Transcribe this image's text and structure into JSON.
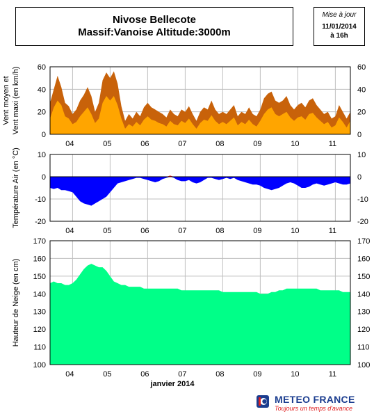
{
  "header": {
    "station": "Nivose Bellecote",
    "massif_line": "Massif:Vanoise Altitude:3000m",
    "update_label": "Mise à jour",
    "update_date": "11/01/2014",
    "update_time": "à 16h"
  },
  "footer": {
    "brand": "METEO FRANCE",
    "slogan": "Toujours un temps d'avance"
  },
  "colors": {
    "wind_mean": "#ffa500",
    "wind_max": "#c8620a",
    "temp_negative": "#0000ff",
    "temp_positive": "#ff0000",
    "snow": "#00ff88"
  },
  "chart_data": [
    {
      "type": "area",
      "ylabel": "Vent moyen et Vent maxi (en km/h)",
      "ylim": [
        0,
        60
      ],
      "yticks": [
        0,
        20,
        40,
        60
      ],
      "xticks": [
        "04",
        "05",
        "06",
        "07",
        "08",
        "09",
        "10",
        "11"
      ],
      "grid": true,
      "x_unit": "day (janvier 2014)",
      "series": [
        {
          "key": "max",
          "x": [
            3.4,
            3.5,
            3.6,
            3.7,
            3.8,
            3.9,
            4.0,
            4.1,
            4.2,
            4.3,
            4.4,
            4.5,
            4.6,
            4.7,
            4.8,
            4.9,
            5.0,
            5.1,
            5.2,
            5.3,
            5.4,
            5.5,
            5.6,
            5.7,
            5.8,
            5.9,
            6.0,
            6.1,
            6.2,
            6.3,
            6.4,
            6.5,
            6.6,
            6.7,
            6.8,
            6.9,
            7.0,
            7.1,
            7.2,
            7.3,
            7.4,
            7.5,
            7.6,
            7.7,
            7.8,
            7.9,
            8.0,
            8.1,
            8.2,
            8.3,
            8.4,
            8.5,
            8.6,
            8.7,
            8.8,
            8.9,
            9.0,
            9.1,
            9.2,
            9.3,
            9.4,
            9.5,
            9.6,
            9.7,
            9.8,
            9.9,
            10.0,
            10.1,
            10.2,
            10.3,
            10.4,
            10.5,
            10.6,
            10.7,
            10.8,
            10.9,
            11.0,
            11.1,
            11.2,
            11.3,
            11.4
          ],
          "values": [
            28,
            40,
            52,
            42,
            28,
            25,
            18,
            22,
            30,
            35,
            42,
            34,
            20,
            28,
            48,
            55,
            50,
            56,
            45,
            25,
            12,
            18,
            14,
            20,
            16,
            24,
            28,
            24,
            22,
            20,
            18,
            15,
            22,
            18,
            16,
            22,
            20,
            25,
            18,
            12,
            20,
            24,
            22,
            30,
            22,
            18,
            20,
            18,
            22,
            26,
            16,
            20,
            18,
            24,
            18,
            16,
            22,
            32,
            36,
            38,
            30,
            28,
            30,
            34,
            26,
            22,
            26,
            28,
            24,
            30,
            32,
            26,
            22,
            18,
            20,
            14,
            16,
            26,
            20,
            14,
            20
          ]
        },
        {
          "key": "mean",
          "x": [
            3.4,
            3.5,
            3.6,
            3.7,
            3.8,
            3.9,
            4.0,
            4.1,
            4.2,
            4.3,
            4.4,
            4.5,
            4.6,
            4.7,
            4.8,
            4.9,
            5.0,
            5.1,
            5.2,
            5.3,
            5.4,
            5.5,
            5.6,
            5.7,
            5.8,
            5.9,
            6.0,
            6.1,
            6.2,
            6.3,
            6.4,
            6.5,
            6.6,
            6.7,
            6.8,
            6.9,
            7.0,
            7.1,
            7.2,
            7.3,
            7.4,
            7.5,
            7.6,
            7.7,
            7.8,
            7.9,
            8.0,
            8.1,
            8.2,
            8.3,
            8.4,
            8.5,
            8.6,
            8.7,
            8.8,
            8.9,
            9.0,
            9.1,
            9.2,
            9.3,
            9.4,
            9.5,
            9.6,
            9.7,
            9.8,
            9.9,
            10.0,
            10.1,
            10.2,
            10.3,
            10.4,
            10.5,
            10.6,
            10.7,
            10.8,
            10.9,
            11.0,
            11.1,
            11.2,
            11.3,
            11.4
          ],
          "values": [
            14,
            24,
            30,
            26,
            16,
            14,
            9,
            11,
            16,
            20,
            24,
            18,
            10,
            14,
            28,
            34,
            30,
            34,
            26,
            14,
            5,
            9,
            7,
            11,
            8,
            13,
            16,
            13,
            12,
            10,
            9,
            7,
            12,
            9,
            8,
            12,
            10,
            14,
            9,
            5,
            10,
            13,
            12,
            17,
            12,
            9,
            11,
            9,
            12,
            15,
            8,
            11,
            9,
            13,
            9,
            7,
            12,
            18,
            22,
            24,
            18,
            16,
            18,
            20,
            15,
            12,
            15,
            16,
            13,
            18,
            19,
            15,
            12,
            9,
            11,
            6,
            8,
            15,
            11,
            6,
            12
          ]
        }
      ]
    },
    {
      "type": "area",
      "ylabel": "Température Air (en °C)",
      "ylim": [
        -20,
        10
      ],
      "yticks": [
        -20,
        -10,
        0,
        10
      ],
      "xticks": [
        "04",
        "05",
        "06",
        "07",
        "08",
        "09",
        "10",
        "11"
      ],
      "grid": true,
      "x_unit": "day (janvier 2014)",
      "series": [
        {
          "key": "temperature",
          "x": [
            3.4,
            3.5,
            3.6,
            3.7,
            3.8,
            3.9,
            4.0,
            4.1,
            4.2,
            4.3,
            4.4,
            4.5,
            4.6,
            4.7,
            4.8,
            4.9,
            5.0,
            5.1,
            5.2,
            5.3,
            5.4,
            5.5,
            5.6,
            5.7,
            5.8,
            5.9,
            6.0,
            6.1,
            6.2,
            6.3,
            6.4,
            6.5,
            6.6,
            6.7,
            6.8,
            6.9,
            7.0,
            7.1,
            7.2,
            7.3,
            7.4,
            7.5,
            7.6,
            7.7,
            7.8,
            7.9,
            8.0,
            8.1,
            8.2,
            8.3,
            8.4,
            8.5,
            8.6,
            8.7,
            8.8,
            8.9,
            9.0,
            9.1,
            9.2,
            9.3,
            9.4,
            9.5,
            9.6,
            9.7,
            9.8,
            9.9,
            10.0,
            10.1,
            10.2,
            10.3,
            10.4,
            10.5,
            10.6,
            10.7,
            10.8,
            10.9,
            11.0,
            11.1,
            11.2,
            11.3,
            11.4
          ],
          "values": [
            -5,
            -5.5,
            -5,
            -6,
            -6,
            -6.5,
            -7,
            -9,
            -11,
            -12,
            -12.5,
            -13,
            -12,
            -11,
            -10,
            -9,
            -7,
            -5,
            -3,
            -2.5,
            -2,
            -1.5,
            -1,
            -0.5,
            -0.5,
            -1,
            -1.5,
            -2,
            -2.5,
            -2,
            -1,
            -0.5,
            0.5,
            -0.5,
            -1.5,
            -2,
            -2,
            -1.5,
            -2.5,
            -3,
            -2.5,
            -1.5,
            -0.5,
            -0.5,
            -1,
            -1.5,
            -1,
            -0.5,
            -1,
            -0.5,
            -1.5,
            -2,
            -2.5,
            -3,
            -3.5,
            -3.5,
            -4,
            -5,
            -5.5,
            -6,
            -5.5,
            -5,
            -4,
            -3,
            -2.5,
            -3,
            -4,
            -5,
            -5,
            -4.5,
            -3.5,
            -3,
            -3.5,
            -4,
            -3.5,
            -3,
            -2.5,
            -3,
            -3.5,
            -3.5,
            -3
          ]
        }
      ]
    },
    {
      "type": "area",
      "ylabel": "Hauteur de Neige (en cm)",
      "xlabel": "janvier 2014",
      "ylim": [
        100,
        170
      ],
      "yticks": [
        100,
        110,
        120,
        130,
        140,
        150,
        160,
        170
      ],
      "xticks": [
        "04",
        "05",
        "06",
        "07",
        "08",
        "09",
        "10",
        "11"
      ],
      "grid": true,
      "x_unit": "day (janvier 2014)",
      "series": [
        {
          "key": "snow_depth",
          "x": [
            3.4,
            3.5,
            3.6,
            3.7,
            3.8,
            3.9,
            4.0,
            4.1,
            4.2,
            4.3,
            4.4,
            4.5,
            4.6,
            4.7,
            4.8,
            4.9,
            5.0,
            5.1,
            5.2,
            5.3,
            5.4,
            5.5,
            5.6,
            5.7,
            5.8,
            5.9,
            6.0,
            6.1,
            6.2,
            6.3,
            6.4,
            6.5,
            6.6,
            6.7,
            6.8,
            6.9,
            7.0,
            7.1,
            7.2,
            7.3,
            7.4,
            7.5,
            7.6,
            7.7,
            7.8,
            7.9,
            8.0,
            8.1,
            8.2,
            8.3,
            8.4,
            8.5,
            8.6,
            8.7,
            8.8,
            8.9,
            9.0,
            9.1,
            9.2,
            9.3,
            9.4,
            9.5,
            9.6,
            9.7,
            9.8,
            9.9,
            10.0,
            10.1,
            10.2,
            10.3,
            10.4,
            10.5,
            10.6,
            10.7,
            10.8,
            10.9,
            11.0,
            11.1,
            11.2,
            11.3,
            11.4
          ],
          "values": [
            146,
            147,
            146,
            146,
            145,
            145,
            146,
            148,
            151,
            154,
            156,
            157,
            156,
            155,
            155,
            153,
            150,
            147,
            146,
            145,
            145,
            144,
            144,
            144,
            144,
            143,
            143,
            143,
            143,
            143,
            143,
            143,
            143,
            143,
            143,
            142,
            142,
            142,
            142,
            142,
            142,
            142,
            142,
            142,
            142,
            142,
            141,
            141,
            141,
            141,
            141,
            141,
            141,
            141,
            141,
            141,
            140,
            140,
            140,
            141,
            141,
            142,
            142,
            143,
            143,
            143,
            143,
            143,
            143,
            143,
            143,
            143,
            142,
            142,
            142,
            142,
            142,
            142,
            141,
            141,
            141
          ]
        }
      ]
    }
  ]
}
